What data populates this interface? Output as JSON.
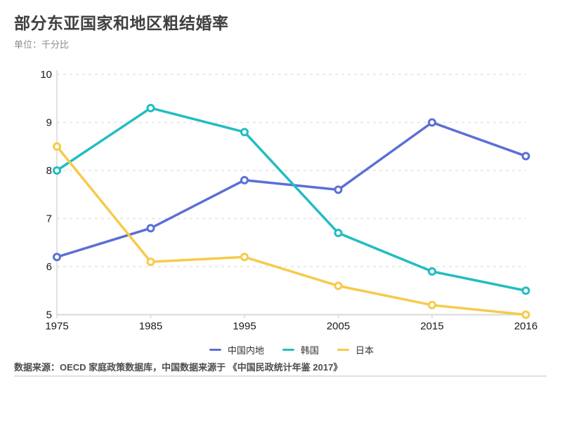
{
  "header": {
    "title": "部分东亚国家和地区粗结婚率",
    "subtitle": "单位：千分比"
  },
  "chart_data": {
    "type": "line",
    "title": "部分东亚国家和地区粗结婚率",
    "unit_label": "单位：千分比",
    "categories": [
      "1975",
      "1985",
      "1995",
      "2005",
      "2015",
      "2016"
    ],
    "series": [
      {
        "name": "中国内地",
        "color": "#5b6fd6",
        "values": [
          6.2,
          6.8,
          7.8,
          7.6,
          9.0,
          8.3
        ]
      },
      {
        "name": "韩国",
        "color": "#22bdc2",
        "values": [
          8.0,
          9.3,
          8.8,
          6.7,
          5.9,
          5.5
        ]
      },
      {
        "name": "日本",
        "color": "#f7ca4a",
        "values": [
          8.5,
          6.1,
          6.2,
          5.6,
          5.2,
          5.0
        ]
      }
    ],
    "xlabel": "",
    "ylabel": "千分比",
    "ylim": [
      5,
      10
    ],
    "yticks": [
      5,
      6,
      7,
      8,
      9,
      10
    ],
    "grid": "horizontal-dashed",
    "legend_position": "bottom"
  },
  "footer": {
    "source": "数据来源：OECD 家庭政策数据库，中国数据来源于 《中国民政统计年鉴 2017》"
  },
  "colors": {
    "grid": "#e3e3e3",
    "axis": "#d9d9d9",
    "tick_label": "#1a1a1a",
    "title": "#3f3f3f",
    "subtitle": "#8c8c8c",
    "footer_text": "#4d4d4d",
    "divider": "#e0e0e0",
    "marker_fill": "#ffffff"
  }
}
